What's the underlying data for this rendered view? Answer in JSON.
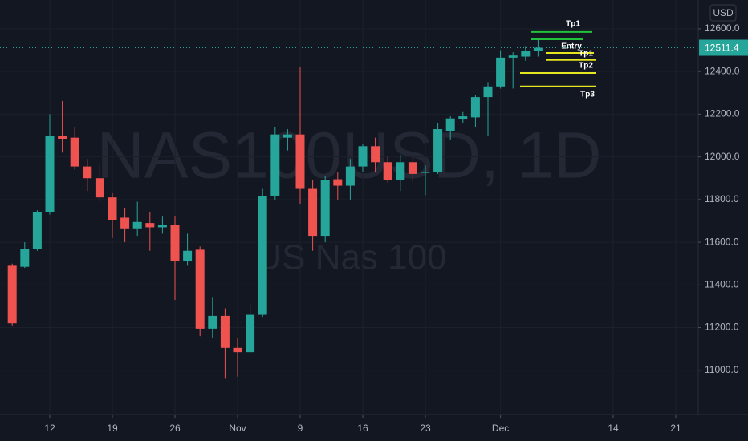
{
  "chart_data": {
    "type": "candlestick",
    "watermark": "NAS100USD, 1D",
    "watermark_subtitle": "US Nas 100",
    "currency": "USD",
    "up_color": "#26a69a",
    "down_color": "#ef5350",
    "grid": true,
    "open": [
      11490,
      11485,
      11570,
      11740,
      12100,
      12090,
      11955,
      11900,
      11810,
      11715,
      11665,
      11690,
      11670,
      11680,
      11510,
      11565,
      11195,
      11255,
      11105,
      11085,
      11260,
      11815,
      12090,
      12105,
      11850,
      11630,
      11895,
      11865,
      11955,
      12050,
      11975,
      11890,
      11975,
      11925,
      11930,
      12120,
      12175,
      12185,
      12280,
      12330,
      12465,
      12470,
      12495
    ],
    "high": [
      11500,
      11600,
      11750,
      12200,
      12262,
      12140,
      11990,
      11960,
      11830,
      11760,
      11790,
      11740,
      11720,
      11720,
      11640,
      11580,
      11340,
      11290,
      11150,
      11310,
      11850,
      12140,
      12130,
      12420,
      11890,
      11910,
      11930,
      11990,
      12060,
      12090,
      12000,
      12010,
      12000,
      11960,
      12160,
      12190,
      12210,
      12290,
      12350,
      12500,
      12490,
      12520,
      12550
    ],
    "low": [
      11210,
      11480,
      11560,
      11730,
      12020,
      11940,
      11840,
      11790,
      11620,
      11600,
      11630,
      11560,
      11640,
      11330,
      11490,
      11160,
      11150,
      10960,
      10970,
      11080,
      11250,
      11800,
      12030,
      11780,
      11560,
      11600,
      11800,
      11800,
      11930,
      11930,
      11880,
      11840,
      11880,
      11820,
      11920,
      12080,
      12160,
      12140,
      12100,
      12320,
      12320,
      12450,
      12470
    ],
    "close": [
      11220,
      11567,
      11740,
      12100,
      12085,
      11955,
      11900,
      11810,
      11705,
      11665,
      11695,
      11670,
      11680,
      11510,
      11560,
      11195,
      11255,
      11105,
      11085,
      11260,
      11815,
      12105,
      12105,
      11850,
      11630,
      11890,
      11865,
      11955,
      12050,
      11975,
      11890,
      11975,
      11920,
      11930,
      12130,
      12180,
      12190,
      12280,
      12330,
      12465,
      12475,
      12495,
      12511.4
    ],
    "xticks": [
      {
        "value": 3,
        "label": "12"
      },
      {
        "value": 8,
        "label": "19"
      },
      {
        "value": 13,
        "label": "26"
      },
      {
        "value": 18,
        "label": "Nov"
      },
      {
        "value": 23,
        "label": "9"
      },
      {
        "value": 28,
        "label": "16"
      },
      {
        "value": 33,
        "label": "23"
      },
      {
        "value": 39,
        "label": "Dec"
      },
      {
        "value": 48,
        "label": "14"
      },
      {
        "value": 53,
        "label": "21"
      }
    ],
    "ylim": [
      10800,
      12735
    ],
    "yticks": [
      {
        "value": 11000,
        "label": "11000.0"
      },
      {
        "value": 11200,
        "label": "11200.0"
      },
      {
        "value": 11400,
        "label": "11400.0"
      },
      {
        "value": 11600,
        "label": "11600.0"
      },
      {
        "value": 11800,
        "label": "11800.0"
      },
      {
        "value": 12000,
        "label": "12000.0"
      },
      {
        "value": 12200,
        "label": "12200.0"
      },
      {
        "value": 12400,
        "label": "12400.0"
      },
      {
        "value": 12600,
        "label": "12600.0"
      }
    ],
    "last_price": {
      "value": 12511.4,
      "label": "12511.4"
    },
    "levels": [
      {
        "value": 12585,
        "label": "Tp1",
        "color": "#22c33a"
      },
      {
        "value": 12551,
        "label": "Entry",
        "color": "#22c33a"
      },
      {
        "value": 12487,
        "label": "Tp1",
        "color": "#e6e61e"
      },
      {
        "value": 12454,
        "label": "Tp2",
        "color": "#e6e61e"
      },
      {
        "value": 12393,
        "color": "#e6e61e"
      },
      {
        "value": 12330,
        "label": "Tp3",
        "color": "#e6e61e"
      }
    ]
  }
}
